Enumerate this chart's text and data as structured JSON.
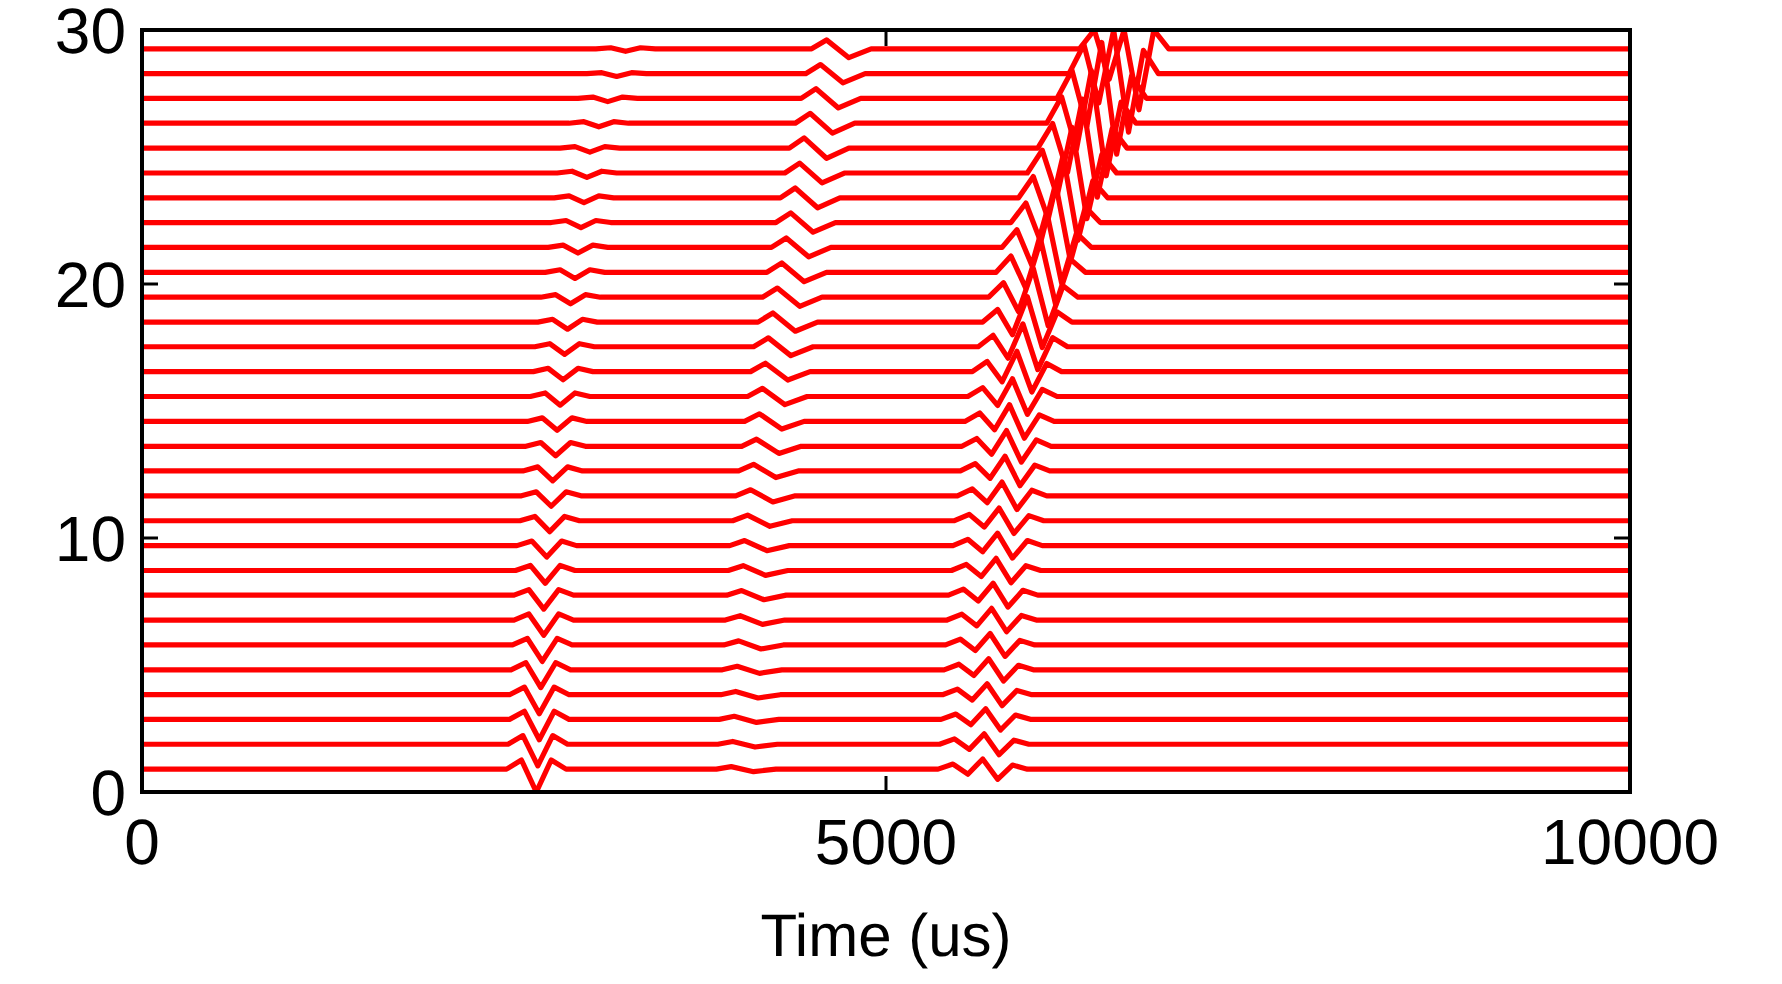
{
  "chart_data": {
    "type": "line",
    "xlabel": "Time (us)",
    "xlim": [
      0,
      10000
    ],
    "xticks": [
      0,
      5000,
      10000
    ],
    "ylim": [
      0,
      30
    ],
    "yticks": [
      0,
      10,
      20,
      30
    ],
    "series": [
      {
        "color": "#ff0000",
        "x": [
          0,
          2450,
          2550,
          2650,
          2750,
          2850,
          3860,
          3960,
          4110,
          4260,
          5350,
          5450,
          5550,
          5650,
          5750,
          5850,
          5950,
          10000
        ],
        "values": [
          0.9,
          0.9,
          1.26,
          0,
          1.26,
          0.9,
          0.9,
          1,
          0.8,
          0.9,
          0.9,
          1.1,
          0.7,
          1.3,
          0.5,
          1.06,
          0.9,
          0.9
        ]
      },
      {
        "color": "#ff0000",
        "x": [
          0,
          2460,
          2560,
          2660,
          2760,
          2860,
          3870,
          3970,
          4120,
          4270,
          5360,
          5460,
          5560,
          5660,
          5760,
          5860,
          5960,
          10000
        ],
        "values": [
          1.88,
          1.88,
          2.22,
          1.03,
          2.22,
          1.88,
          1.88,
          1.99,
          1.77,
          1.88,
          1.88,
          2.09,
          1.68,
          2.29,
          1.47,
          2.04,
          1.88,
          1.88
        ]
      },
      {
        "color": "#ff0000",
        "x": [
          0,
          2470,
          2570,
          2670,
          2770,
          2870,
          3880,
          3980,
          4130,
          4280,
          5370,
          5470,
          5570,
          5670,
          5770,
          5870,
          5970,
          10000
        ],
        "values": [
          2.86,
          2.86,
          3.18,
          2.06,
          3.18,
          2.86,
          2.86,
          2.98,
          2.74,
          2.86,
          2.86,
          3.07,
          2.65,
          3.28,
          2.44,
          3.03,
          2.86,
          2.86
        ]
      },
      {
        "color": "#ff0000",
        "x": [
          0,
          2470,
          2570,
          2670,
          2770,
          2870,
          3890,
          3990,
          4140,
          4290,
          5380,
          5480,
          5580,
          5680,
          5780,
          5880,
          5980,
          10000
        ],
        "values": [
          3.83,
          3.83,
          4.13,
          3.08,
          4.13,
          3.83,
          3.83,
          3.96,
          3.7,
          3.83,
          3.83,
          4.05,
          3.62,
          4.26,
          3.4,
          4,
          3.83,
          3.83
        ]
      },
      {
        "color": "#ff0000",
        "x": [
          0,
          2480,
          2580,
          2680,
          2780,
          2880,
          3900,
          4000,
          4150,
          4300,
          5390,
          5490,
          5590,
          5690,
          5790,
          5890,
          5990,
          10000
        ],
        "values": [
          4.81,
          4.81,
          5.09,
          4.11,
          5.09,
          4.81,
          4.81,
          4.95,
          4.67,
          4.81,
          4.81,
          5.03,
          4.59,
          5.25,
          4.37,
          4.99,
          4.81,
          4.81
        ]
      },
      {
        "color": "#ff0000",
        "x": [
          0,
          2490,
          2590,
          2690,
          2790,
          2890,
          3910,
          4010,
          4160,
          4310,
          5400,
          5500,
          5600,
          5700,
          5800,
          5900,
          6000,
          10000
        ],
        "values": [
          5.79,
          5.79,
          6.05,
          5.14,
          6.05,
          5.79,
          5.79,
          5.95,
          5.63,
          5.79,
          5.79,
          6.02,
          5.57,
          6.24,
          5.34,
          5.97,
          5.79,
          5.79
        ]
      },
      {
        "color": "#ff0000",
        "x": [
          0,
          2500,
          2600,
          2700,
          2800,
          2900,
          3920,
          4020,
          4170,
          4320,
          5410,
          5510,
          5610,
          5710,
          5810,
          5910,
          6010,
          10000
        ],
        "values": [
          6.77,
          6.77,
          7.01,
          6.17,
          7.01,
          6.77,
          6.77,
          6.94,
          6.6,
          6.77,
          6.77,
          7,
          6.54,
          7.23,
          6.31,
          6.95,
          6.77,
          6.77
        ]
      },
      {
        "color": "#ff0000",
        "x": [
          0,
          2500,
          2600,
          2700,
          2800,
          2900,
          3930,
          4030,
          4180,
          4330,
          5420,
          5520,
          5620,
          5720,
          5820,
          5920,
          6020,
          10000
        ],
        "values": [
          7.75,
          7.75,
          7.97,
          7.2,
          7.97,
          7.75,
          7.75,
          7.93,
          7.57,
          7.75,
          7.75,
          7.99,
          7.52,
          8.22,
          7.28,
          7.94,
          7.75,
          7.75
        ]
      },
      {
        "color": "#ff0000",
        "x": [
          0,
          2510,
          2610,
          2710,
          2810,
          2910,
          3940,
          4040,
          4190,
          4340,
          5440,
          5540,
          5640,
          5740,
          5840,
          5940,
          6040,
          10000
        ],
        "values": [
          8.72,
          8.72,
          8.92,
          8.22,
          8.92,
          8.72,
          8.72,
          8.91,
          8.53,
          8.72,
          8.72,
          8.96,
          8.48,
          9.2,
          8.24,
          8.91,
          8.72,
          8.72
        ]
      },
      {
        "color": "#ff0000",
        "x": [
          0,
          2520,
          2620,
          2720,
          2820,
          2920,
          3950,
          4050,
          4200,
          4350,
          5450,
          5550,
          5650,
          5750,
          5850,
          5950,
          6050,
          10000
        ],
        "values": [
          9.7,
          9.7,
          9.88,
          9.25,
          9.88,
          9.7,
          9.7,
          9.9,
          9.5,
          9.7,
          9.7,
          9.95,
          9.46,
          10.19,
          9.21,
          9.9,
          9.7,
          9.7
        ]
      },
      {
        "color": "#ff0000",
        "x": [
          0,
          2540,
          2640,
          2740,
          2840,
          2940,
          3970,
          4070,
          4220,
          4370,
          5460,
          5560,
          5660,
          5760,
          5860,
          5960,
          6060,
          10000
        ],
        "values": [
          10.68,
          10.68,
          10.85,
          10.25,
          10.85,
          10.68,
          10.68,
          10.9,
          10.46,
          10.68,
          10.68,
          10.93,
          10.43,
          11.18,
          10.18,
          10.88,
          10.68,
          10.68
        ]
      },
      {
        "color": "#ff0000",
        "x": [
          0,
          2550,
          2650,
          2750,
          2850,
          2950,
          3990,
          4090,
          4240,
          4390,
          5480,
          5580,
          5680,
          5780,
          5880,
          5980,
          6080,
          10000
        ],
        "values": [
          11.66,
          11.66,
          11.82,
          11.25,
          11.82,
          11.66,
          11.66,
          11.9,
          11.42,
          11.66,
          11.66,
          11.93,
          11.39,
          12.2,
          11.12,
          11.88,
          11.66,
          11.66
        ]
      },
      {
        "color": "#ff0000",
        "x": [
          0,
          2560,
          2660,
          2760,
          2860,
          2960,
          4010,
          4110,
          4260,
          4410,
          5500,
          5600,
          5700,
          5800,
          5900,
          6000,
          6100,
          10000
        ],
        "values": [
          12.64,
          12.64,
          12.8,
          12.25,
          12.8,
          12.64,
          12.64,
          12.9,
          12.38,
          12.64,
          12.64,
          12.93,
          12.35,
          13.22,
          12.06,
          12.87,
          12.64,
          12.64
        ]
      },
      {
        "color": "#ff0000",
        "x": [
          0,
          2580,
          2680,
          2780,
          2880,
          2980,
          4030,
          4130,
          4280,
          4430,
          5510,
          5610,
          5710,
          5810,
          5910,
          6010,
          6110,
          10000
        ],
        "values": [
          13.61,
          13.61,
          13.76,
          13.24,
          13.76,
          13.61,
          13.61,
          13.89,
          13.33,
          13.61,
          13.61,
          13.92,
          13.3,
          14.23,
          12.99,
          13.86,
          13.61,
          13.61
        ]
      },
      {
        "color": "#ff0000",
        "x": [
          0,
          2590,
          2690,
          2790,
          2890,
          2990,
          4050,
          4150,
          4300,
          4450,
          5530,
          5630,
          5730,
          5830,
          5930,
          6030,
          6130,
          10000
        ],
        "values": [
          14.59,
          14.59,
          14.73,
          14.24,
          14.73,
          14.59,
          14.59,
          14.89,
          14.29,
          14.59,
          14.59,
          14.92,
          14.26,
          15.25,
          13.93,
          14.85,
          14.59,
          14.59
        ]
      },
      {
        "color": "#ff0000",
        "x": [
          0,
          2610,
          2710,
          2810,
          2910,
          3010,
          4070,
          4170,
          4320,
          4470,
          5550,
          5650,
          5750,
          5850,
          5950,
          6050,
          6150,
          10000
        ],
        "values": [
          15.57,
          15.57,
          15.71,
          15.23,
          15.71,
          15.57,
          15.57,
          15.89,
          15.25,
          15.57,
          15.57,
          15.92,
          15.22,
          16.27,
          14.87,
          15.85,
          15.57,
          15.57
        ]
      },
      {
        "color": "#ff0000",
        "x": [
          0,
          2630,
          2730,
          2830,
          2930,
          3030,
          4090,
          4190,
          4340,
          4490,
          5580,
          5680,
          5780,
          5880,
          5980,
          6080,
          6180,
          10000
        ],
        "values": [
          16.55,
          16.55,
          16.68,
          16.23,
          16.68,
          16.55,
          16.55,
          16.88,
          16.22,
          16.55,
          16.55,
          16.95,
          16.15,
          17.35,
          15.75,
          16.87,
          16.55,
          16.55
        ]
      },
      {
        "color": "#ff0000",
        "x": [
          0,
          2640,
          2740,
          2840,
          2940,
          3040,
          4110,
          4210,
          4360,
          4510,
          5620,
          5720,
          5820,
          5920,
          6020,
          6120,
          6220,
          10000
        ],
        "values": [
          17.53,
          17.53,
          17.65,
          17.23,
          17.65,
          17.53,
          17.53,
          17.88,
          17.18,
          17.53,
          17.53,
          17.98,
          17.08,
          18.43,
          16.63,
          17.89,
          17.53,
          17.53
        ]
      },
      {
        "color": "#ff0000",
        "x": [
          0,
          2660,
          2760,
          2860,
          2960,
          3060,
          4140,
          4240,
          4390,
          4540,
          5650,
          5750,
          5850,
          5950,
          6050,
          6150,
          6250,
          10000
        ],
        "values": [
          18.5,
          18.5,
          18.61,
          18.22,
          18.61,
          18.5,
          18.5,
          18.86,
          18.14,
          18.5,
          18.5,
          19,
          18,
          19.5,
          17.5,
          18.9,
          18.5,
          18.5
        ]
      },
      {
        "color": "#ff0000",
        "x": [
          0,
          2680,
          2780,
          2880,
          2980,
          3080,
          4170,
          4270,
          4420,
          4570,
          5690,
          5790,
          5890,
          5990,
          6090,
          6190,
          6290,
          10000
        ],
        "values": [
          19.48,
          19.48,
          19.58,
          19.22,
          19.58,
          19.48,
          19.48,
          19.84,
          19.12,
          19.48,
          19.48,
          20.05,
          18.92,
          20.61,
          18.35,
          19.93,
          19.48,
          19.48
        ]
      },
      {
        "color": "#ff0000",
        "x": [
          0,
          2710,
          2810,
          2910,
          3010,
          3110,
          4200,
          4300,
          4450,
          4600,
          5740,
          5840,
          5940,
          6040,
          6140,
          6240,
          6340,
          10000
        ],
        "values": [
          20.46,
          20.46,
          20.56,
          20.22,
          20.56,
          20.46,
          20.46,
          20.83,
          20.09,
          20.46,
          20.46,
          21.1,
          19.83,
          21.73,
          19.19,
          20.97,
          20.46,
          20.46
        ]
      },
      {
        "color": "#ff0000",
        "x": [
          0,
          2730,
          2830,
          2930,
          3030,
          3130,
          4230,
          4330,
          4480,
          4630,
          5780,
          5880,
          5980,
          6080,
          6180,
          6280,
          6380,
          10000
        ],
        "values": [
          21.44,
          21.44,
          21.53,
          21.22,
          21.53,
          21.44,
          21.44,
          21.81,
          21.07,
          21.44,
          21.44,
          22.14,
          20.74,
          22.84,
          20.04,
          22,
          21.44,
          21.44
        ]
      },
      {
        "color": "#ff0000",
        "x": [
          0,
          2750,
          2850,
          2950,
          3050,
          3150,
          4260,
          4360,
          4510,
          4660,
          5840,
          5940,
          6040,
          6140,
          6240,
          6340,
          6440,
          10000
        ],
        "values": [
          22.42,
          22.42,
          22.5,
          22.22,
          22.5,
          22.42,
          22.42,
          22.8,
          22.04,
          22.42,
          22.42,
          23.19,
          21.66,
          23.95,
          20.89,
          23.03,
          22.42,
          22.42
        ]
      },
      {
        "color": "#ff0000",
        "x": [
          0,
          2770,
          2870,
          2970,
          3070,
          3170,
          4290,
          4390,
          4540,
          4690,
          5890,
          5990,
          6090,
          6190,
          6290,
          6390,
          6490,
          10000
        ],
        "values": [
          23.39,
          23.39,
          23.47,
          23.2,
          23.47,
          23.39,
          23.39,
          23.78,
          23,
          23.39,
          23.39,
          24.23,
          22.56,
          25.06,
          21.72,
          24.06,
          23.39,
          23.39
        ]
      },
      {
        "color": "#ff0000",
        "x": [
          0,
          2790,
          2890,
          2990,
          3090,
          3190,
          4320,
          4420,
          4570,
          4720,
          5950,
          6050,
          6150,
          6250,
          6350,
          6450,
          6550,
          10000
        ],
        "values": [
          24.37,
          24.37,
          24.44,
          24.2,
          24.44,
          24.37,
          24.37,
          24.76,
          23.98,
          24.37,
          24.37,
          25.27,
          23.47,
          26.17,
          22.57,
          25.09,
          24.37,
          24.37
        ]
      },
      {
        "color": "#ff0000",
        "x": [
          0,
          2810,
          2910,
          3010,
          3110,
          3210,
          4350,
          4450,
          4600,
          4750,
          6020,
          6120,
          6220,
          6320,
          6420,
          6520,
          6620,
          10000
        ],
        "values": [
          25.35,
          25.35,
          25.41,
          25.19,
          25.41,
          25.35,
          25.35,
          25.75,
          24.95,
          25.35,
          25.35,
          26.32,
          24.39,
          27.28,
          23.42,
          26.12,
          25.35,
          25.35
        ]
      },
      {
        "color": "#ff0000",
        "x": [
          0,
          2870,
          2970,
          3070,
          3170,
          3270,
          4390,
          4490,
          4640,
          4790,
          6080,
          6180,
          6280,
          6380,
          6480,
          6580,
          6680,
          10000
        ],
        "values": [
          26.33,
          26.33,
          26.39,
          26.19,
          26.39,
          26.33,
          26.33,
          26.72,
          25.94,
          26.33,
          26.33,
          27.37,
          25.3,
          28.4,
          24.26,
          27.16,
          26.33,
          26.33
        ]
      },
      {
        "color": "#ff0000",
        "x": [
          0,
          2930,
          3030,
          3130,
          3230,
          3330,
          4430,
          4530,
          4680,
          4830,
          6150,
          6250,
          6350,
          6450,
          6550,
          6650,
          6750,
          10000
        ],
        "values": [
          27.31,
          27.31,
          27.36,
          27.18,
          27.36,
          27.31,
          27.31,
          27.69,
          26.93,
          27.31,
          27.31,
          28.41,
          26.21,
          29.51,
          25.11,
          28.19,
          27.31,
          27.31
        ]
      },
      {
        "color": "#ff0000",
        "x": [
          0,
          2990,
          3090,
          3190,
          3290,
          3390,
          4460,
          4560,
          4710,
          4860,
          6230,
          6330,
          6430,
          6530,
          6630,
          6730,
          6830,
          10000
        ],
        "values": [
          28.28,
          28.28,
          28.32,
          28.17,
          28.32,
          28.28,
          28.28,
          28.64,
          27.92,
          28.28,
          28.28,
          29.43,
          27.13,
          30,
          25.98,
          29.2,
          28.28,
          28.28
        ]
      },
      {
        "color": "#ff0000",
        "x": [
          0,
          3050,
          3150,
          3250,
          3350,
          3450,
          4500,
          4600,
          4750,
          4900,
          6300,
          6400,
          6500,
          6600,
          6700,
          6800,
          6900,
          10000
        ],
        "values": [
          29.26,
          29.26,
          29.3,
          29.16,
          29.3,
          29.26,
          29.26,
          29.61,
          28.91,
          29.26,
          29.26,
          30,
          28.06,
          30,
          26.86,
          30,
          29.26,
          29.26
        ]
      }
    ]
  }
}
